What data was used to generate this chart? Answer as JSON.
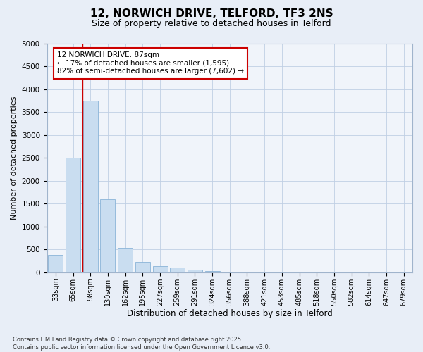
{
  "title": "12, NORWICH DRIVE, TELFORD, TF3 2NS",
  "subtitle": "Size of property relative to detached houses in Telford",
  "xlabel": "Distribution of detached houses by size in Telford",
  "ylabel": "Number of detached properties",
  "categories": [
    "33sqm",
    "65sqm",
    "98sqm",
    "130sqm",
    "162sqm",
    "195sqm",
    "227sqm",
    "259sqm",
    "291sqm",
    "324sqm",
    "356sqm",
    "388sqm",
    "421sqm",
    "453sqm",
    "485sqm",
    "518sqm",
    "550sqm",
    "582sqm",
    "614sqm",
    "647sqm",
    "679sqm"
  ],
  "values": [
    380,
    2500,
    3750,
    1600,
    530,
    220,
    130,
    100,
    60,
    30,
    10,
    5,
    2,
    1,
    0,
    0,
    0,
    0,
    0,
    0,
    0
  ],
  "bar_color": "#c9ddf0",
  "bar_edge_color": "#8ab4d8",
  "ylim": [
    0,
    5000
  ],
  "yticks": [
    0,
    500,
    1000,
    1500,
    2000,
    2500,
    3000,
    3500,
    4000,
    4500,
    5000
  ],
  "vline_color": "#cc0000",
  "annotation_text": "12 NORWICH DRIVE: 87sqm\n← 17% of detached houses are smaller (1,595)\n82% of semi-detached houses are larger (7,602) →",
  "annotation_box_color": "#ffffff",
  "annotation_box_edge": "#cc0000",
  "footer": "Contains HM Land Registry data © Crown copyright and database right 2025.\nContains public sector information licensed under the Open Government Licence v3.0.",
  "bg_color": "#e8eef7",
  "plot_bg_color": "#f0f4fa",
  "grid_color": "#c0cfe4",
  "title_fontsize": 11,
  "subtitle_fontsize": 9,
  "tick_fontsize": 7,
  "ylabel_fontsize": 8,
  "xlabel_fontsize": 8.5,
  "footer_fontsize": 6,
  "annotation_fontsize": 7.5
}
